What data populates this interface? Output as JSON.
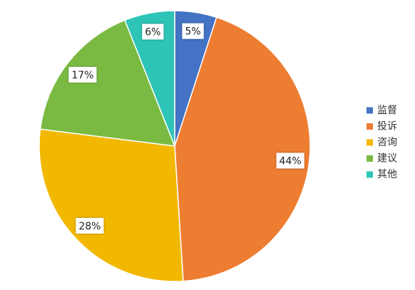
{
  "chart_data": {
    "type": "pie",
    "categories": [
      "监督",
      "投诉",
      "咨询",
      "建议",
      "其他"
    ],
    "values": [
      5,
      44,
      28,
      17,
      6
    ],
    "value_labels": [
      "5%",
      "44%",
      "28%",
      "17%",
      "6%"
    ],
    "colors": [
      "#4472c4",
      "#ed7d31",
      "#f2b800",
      "#7aba42",
      "#2fc4b8"
    ],
    "legend": "right"
  }
}
